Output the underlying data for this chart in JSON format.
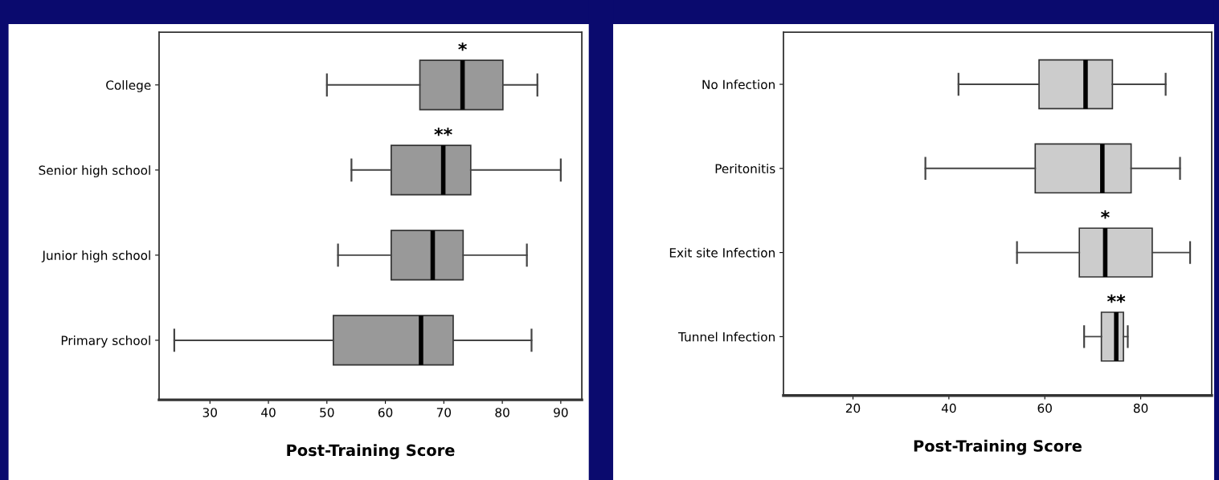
{
  "chart_data": [
    {
      "type": "box",
      "orientation": "horizontal",
      "xlabel": "Post-Training Score",
      "categories": [
        "College",
        "Senior high school",
        "Junior high school",
        "Primary school"
      ],
      "color": "#999999",
      "boxes": [
        {
          "low": 50,
          "q1": 65.9,
          "median": 73.2,
          "q3": 80.1,
          "high": 86
        },
        {
          "low": 54.2,
          "q1": 61,
          "median": 69.9,
          "q3": 74.6,
          "high": 90
        },
        {
          "low": 51.9,
          "q1": 61,
          "median": 68.1,
          "q3": 73.3,
          "high": 84.2
        },
        {
          "low": 23.9,
          "q1": 51.1,
          "median": 66.1,
          "q3": 71.6,
          "high": 85
        }
      ],
      "xlim": [
        21.3,
        93.6
      ],
      "xticks": [
        30,
        40,
        50,
        60,
        70,
        80,
        90
      ],
      "grid": false,
      "annotations": [
        {
          "text": "*",
          "x": 73.2,
          "y": "College"
        },
        {
          "text": "**",
          "x": 69.9,
          "y": "Senior high school"
        }
      ]
    },
    {
      "type": "box",
      "orientation": "horizontal",
      "xlabel": "Post-Training Score",
      "categories": [
        "No Infection",
        "Peritonitis",
        "Exit site Infection",
        "Tunnel Infection"
      ],
      "color": "#cccccc",
      "boxes": [
        {
          "low": 42,
          "q1": 58.8,
          "median": 68.5,
          "q3": 74.1,
          "high": 85.2
        },
        {
          "low": 35.1,
          "q1": 58,
          "median": 72,
          "q3": 78,
          "high": 88.2
        },
        {
          "low": 54.2,
          "q1": 67.2,
          "median": 72.6,
          "q3": 82.4,
          "high": 90.3
        },
        {
          "low": 68.2,
          "q1": 71.8,
          "median": 74.9,
          "q3": 76.4,
          "high": 77.3
        }
      ],
      "xlim": [
        5.5,
        94.8
      ],
      "xticks": [
        20,
        40,
        60,
        80
      ],
      "grid": false,
      "annotations": [
        {
          "text": "*",
          "x": 72.6,
          "y": "Exit site Infection"
        },
        {
          "text": "**",
          "x": 74.9,
          "y": "Tunnel Infection"
        }
      ]
    }
  ]
}
